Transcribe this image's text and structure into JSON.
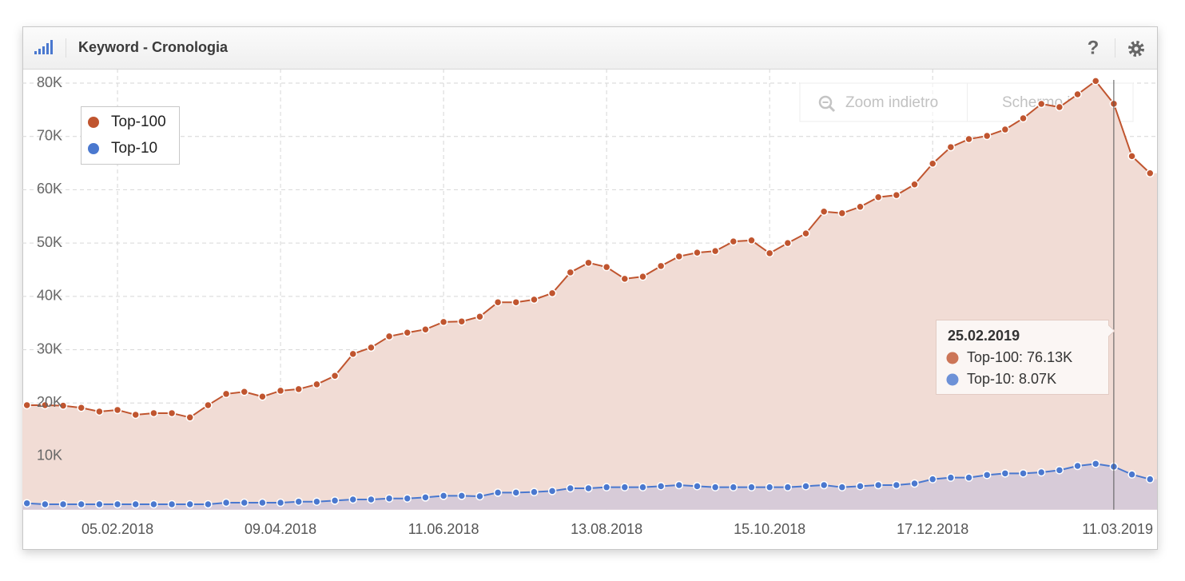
{
  "widget": {
    "title": "Keyword - Cronologia",
    "help": "?",
    "buttons": [
      "Zoom indietro",
      "Schermo intero"
    ]
  },
  "chart_data": {
    "type": "area",
    "categories": [
      null,
      null,
      null,
      null,
      null,
      "05.02.2018",
      null,
      null,
      null,
      null,
      null,
      null,
      null,
      null,
      "09.04.2018",
      null,
      null,
      null,
      null,
      null,
      null,
      null,
      null,
      "11.06.2018",
      null,
      null,
      null,
      null,
      null,
      null,
      null,
      null,
      "13.08.2018",
      null,
      null,
      null,
      null,
      null,
      null,
      null,
      null,
      "15.10.2018",
      null,
      null,
      null,
      null,
      null,
      null,
      null,
      null,
      "17.12.2018",
      null,
      null,
      null,
      null,
      null,
      null,
      null,
      null,
      null,
      null,
      null,
      "11.03.2019"
    ],
    "series": [
      {
        "name": "Top-100",
        "color": "#c0552f",
        "fill": "#f1dcd5",
        "values": [
          19600,
          19600,
          19500,
          19100,
          18400,
          18700,
          17800,
          18100,
          18100,
          17300,
          19600,
          21700,
          22100,
          21200,
          22300,
          22600,
          23500,
          25100,
          29200,
          30400,
          32500,
          33200,
          33800,
          35200,
          35300,
          36200,
          38900,
          38900,
          39400,
          40600,
          44500,
          46300,
          45500,
          43300,
          43700,
          45700,
          47500,
          48200,
          48500,
          50300,
          50500,
          48100,
          50000,
          51800,
          55900,
          55600,
          56800,
          58600,
          59000,
          61000,
          64900,
          68000,
          69500,
          70100,
          71300,
          73400,
          76100,
          75500,
          77900,
          80400,
          76130,
          66300,
          63100
        ]
      },
      {
        "name": "Top-10",
        "color": "#4a78cf",
        "fill": "#d2c8d8",
        "values": [
          1200,
          1000,
          1000,
          1000,
          1000,
          1000,
          1000,
          1000,
          1000,
          1000,
          1000,
          1300,
          1300,
          1300,
          1300,
          1500,
          1500,
          1700,
          1900,
          1900,
          2100,
          2100,
          2300,
          2600,
          2600,
          2500,
          3200,
          3200,
          3300,
          3500,
          4000,
          4000,
          4200,
          4200,
          4200,
          4400,
          4600,
          4400,
          4200,
          4200,
          4200,
          4200,
          4200,
          4400,
          4600,
          4200,
          4400,
          4600,
          4600,
          4900,
          5700,
          6000,
          6000,
          6500,
          6800,
          6800,
          7000,
          7400,
          8200,
          8600,
          8070,
          6600,
          5700
        ]
      }
    ],
    "ylim": [
      0,
      82700
    ],
    "yticks": [
      {
        "value": 10000,
        "label": "10K"
      },
      {
        "value": 20000,
        "label": "20K"
      },
      {
        "value": 30000,
        "label": "30K"
      },
      {
        "value": 40000,
        "label": "40K"
      },
      {
        "value": 50000,
        "label": "50K"
      },
      {
        "value": 60000,
        "label": "60K"
      },
      {
        "value": 70000,
        "label": "70K"
      },
      {
        "value": 80000,
        "label": "80K"
      }
    ],
    "grid": true,
    "legend": "top-left",
    "tooltip": {
      "title": "25.02.2019",
      "lines": [
        "Top-100: 76.13K",
        "Top-10: 8.07K"
      ]
    }
  }
}
